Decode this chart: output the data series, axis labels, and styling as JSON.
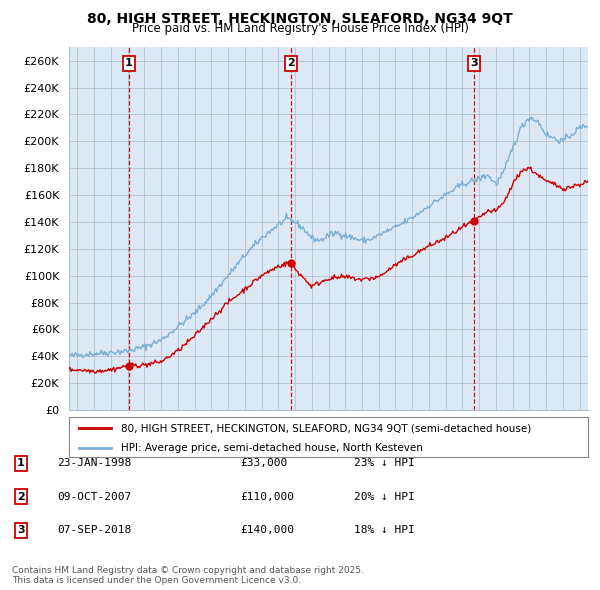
{
  "title": "80, HIGH STREET, HECKINGTON, SLEAFORD, NG34 9QT",
  "subtitle": "Price paid vs. HM Land Registry's House Price Index (HPI)",
  "legend_line1": "80, HIGH STREET, HECKINGTON, SLEAFORD, NG34 9QT (semi-detached house)",
  "legend_line2": "HPI: Average price, semi-detached house, North Kesteven",
  "footer": "Contains HM Land Registry data © Crown copyright and database right 2025.\nThis data is licensed under the Open Government Licence v3.0.",
  "transactions": [
    {
      "label": "1",
      "date": "23-JAN-1998",
      "price": 33000,
      "pct": "23% ↓ HPI",
      "x_year": 1998.06
    },
    {
      "label": "2",
      "date": "09-OCT-2007",
      "price": 110000,
      "pct": "20% ↓ HPI",
      "x_year": 2007.77
    },
    {
      "label": "3",
      "date": "07-SEP-2018",
      "price": 140000,
      "pct": "18% ↓ HPI",
      "x_year": 2018.68
    }
  ],
  "hpi_color": "#7bafd4",
  "price_color": "#cc0000",
  "vline_color": "#cc0000",
  "plot_bg_color": "#dce9f5",
  "ylim": [
    0,
    270000
  ],
  "yticks": [
    0,
    20000,
    40000,
    60000,
    80000,
    100000,
    120000,
    140000,
    160000,
    180000,
    200000,
    220000,
    240000,
    260000
  ],
  "xlim_start": 1994.5,
  "xlim_end": 2025.5,
  "background_color": "#ffffff",
  "grid_color": "#aabbcc"
}
